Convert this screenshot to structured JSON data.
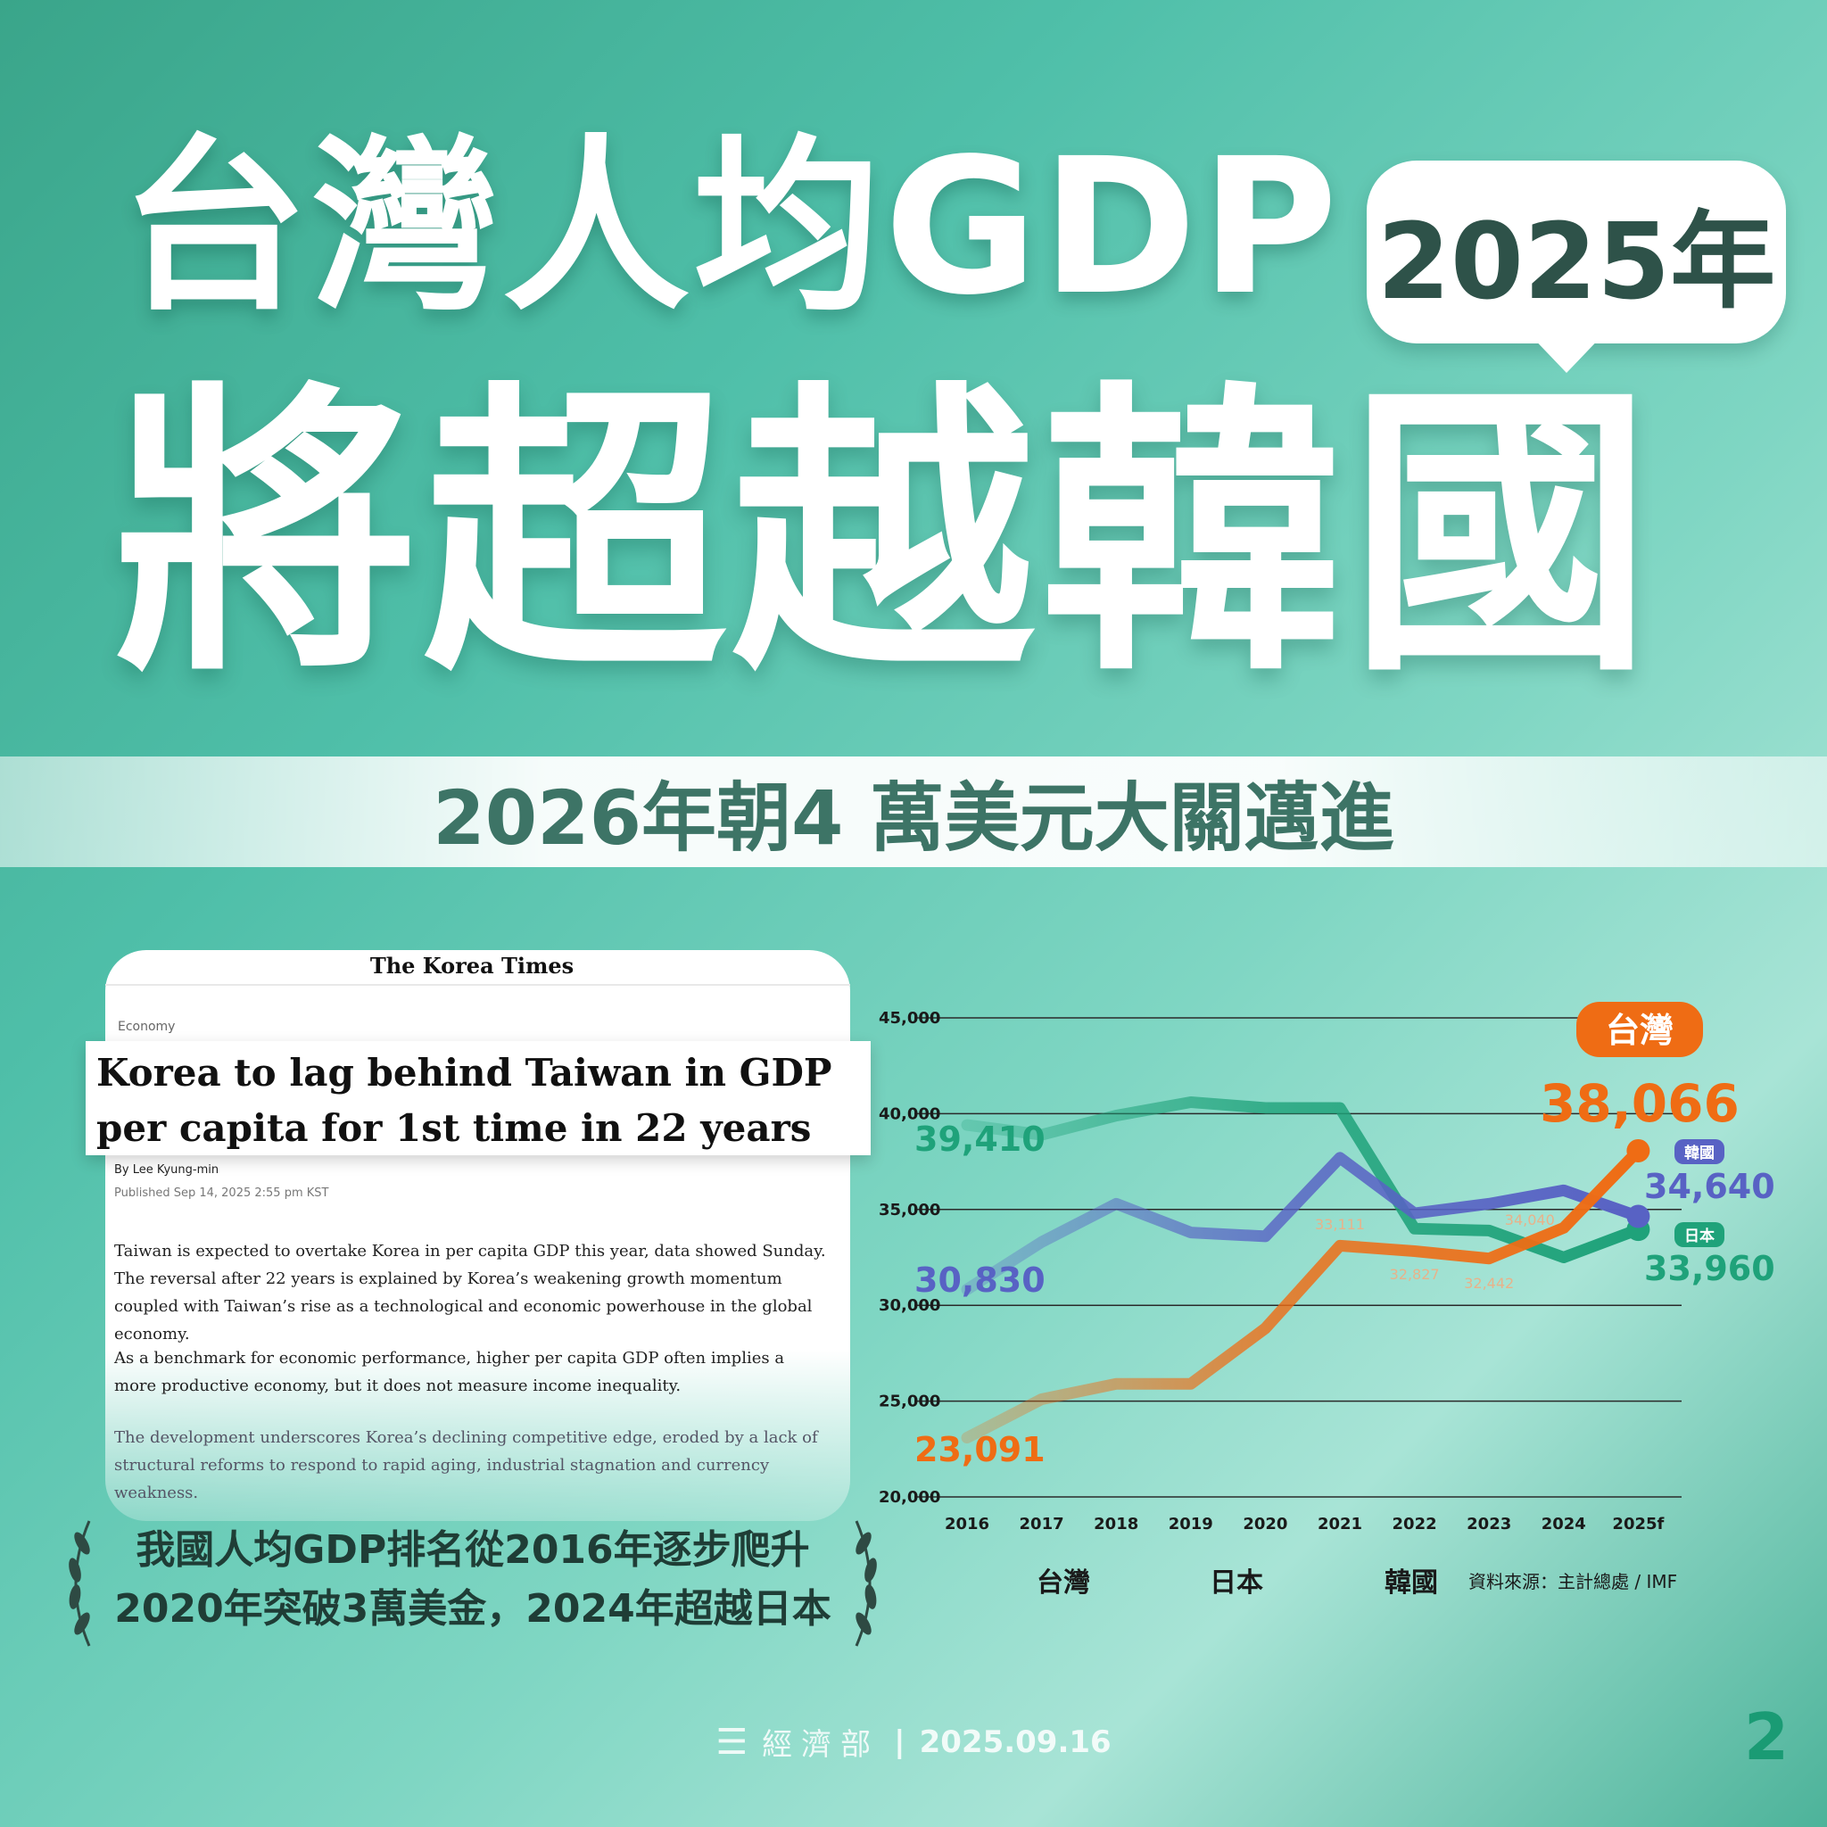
{
  "title": {
    "line1": "台灣人均GDP",
    "bubble": "2025年",
    "line2": "將超越韓國"
  },
  "banner": "2026年朝4 萬美元大關邁進",
  "article": {
    "masthead": "The Korea Times",
    "section": "Economy",
    "headline": "Korea to lag behind Taiwan in GDP per capita for 1st time in 22 years",
    "byline": "By Lee Kyung-min",
    "published": "Published Sep 14, 2025 2:55 pm KST",
    "paragraphs": [
      "Taiwan is expected to overtake Korea in per capita GDP this year, data showed Sunday. The reversal after 22 years is explained by Korea’s weakening growth momentum coupled with Taiwan’s rise as a technological and economic powerhouse in the global economy.",
      "As a benchmark for economic performance, higher per capita GDP often implies a more productive economy, but it does not measure income inequality.",
      "The development underscores Korea’s declining competitive edge, eroded by a lack of structural reforms to respond to rapid aging, industrial stagnation and currency weakness."
    ]
  },
  "caption": {
    "line1": "我國人均GDP排名從2016年逐步爬升",
    "line2": "2020年突破3萬美金，2024年超越日本"
  },
  "footer": {
    "org": "經濟部",
    "date": "2025.09.16",
    "page": "2"
  },
  "colors": {
    "taiwan": "#ef6c14",
    "japan": "#1fa27a",
    "korea": "#5862c4",
    "title": "#ffffff",
    "banner_text": "#3d7466"
  },
  "chart_data": {
    "type": "line",
    "categories": [
      "2016",
      "2017",
      "2018",
      "2019",
      "2020",
      "2021",
      "2022",
      "2023",
      "2024",
      "2025f"
    ],
    "ylim": [
      20000,
      45000
    ],
    "yticks": [
      20000,
      25000,
      30000,
      35000,
      40000,
      45000
    ],
    "ytick_labels": [
      "20,000",
      "25,000",
      "30,000",
      "35,000",
      "40,000",
      "45,000"
    ],
    "grid": true,
    "series": [
      {
        "name": "台灣",
        "key": "taiwan",
        "values": [
          23091,
          25100,
          25900,
          25900,
          28800,
          33111,
          32827,
          32442,
          34040,
          38066
        ]
      },
      {
        "name": "日本",
        "key": "japan",
        "values": [
          39410,
          38900,
          39900,
          40600,
          40300,
          40300,
          34000,
          33900,
          32500,
          33960
        ]
      },
      {
        "name": "韓國",
        "key": "korea",
        "values": [
          30830,
          33300,
          35300,
          33800,
          33600,
          37700,
          34800,
          35300,
          36000,
          34640
        ]
      }
    ],
    "labels": {
      "start_taiwan": "23,091",
      "start_japan": "39,410",
      "start_korea": "30,830",
      "end_taiwan": "38,066",
      "end_korea": "34,640",
      "end_japan": "33,960",
      "mid_2021": "33,111",
      "mid_2022": "32,827",
      "mid_2023": "32,442",
      "mid_2024": "34,040"
    },
    "badges": {
      "taiwan": "台灣",
      "korea": "韓國",
      "japan": "日本"
    },
    "legend": [
      "台灣",
      "日本",
      "韓國"
    ],
    "legend_placement": "bottom",
    "source": "資料來源：主計總處 / IMF"
  }
}
